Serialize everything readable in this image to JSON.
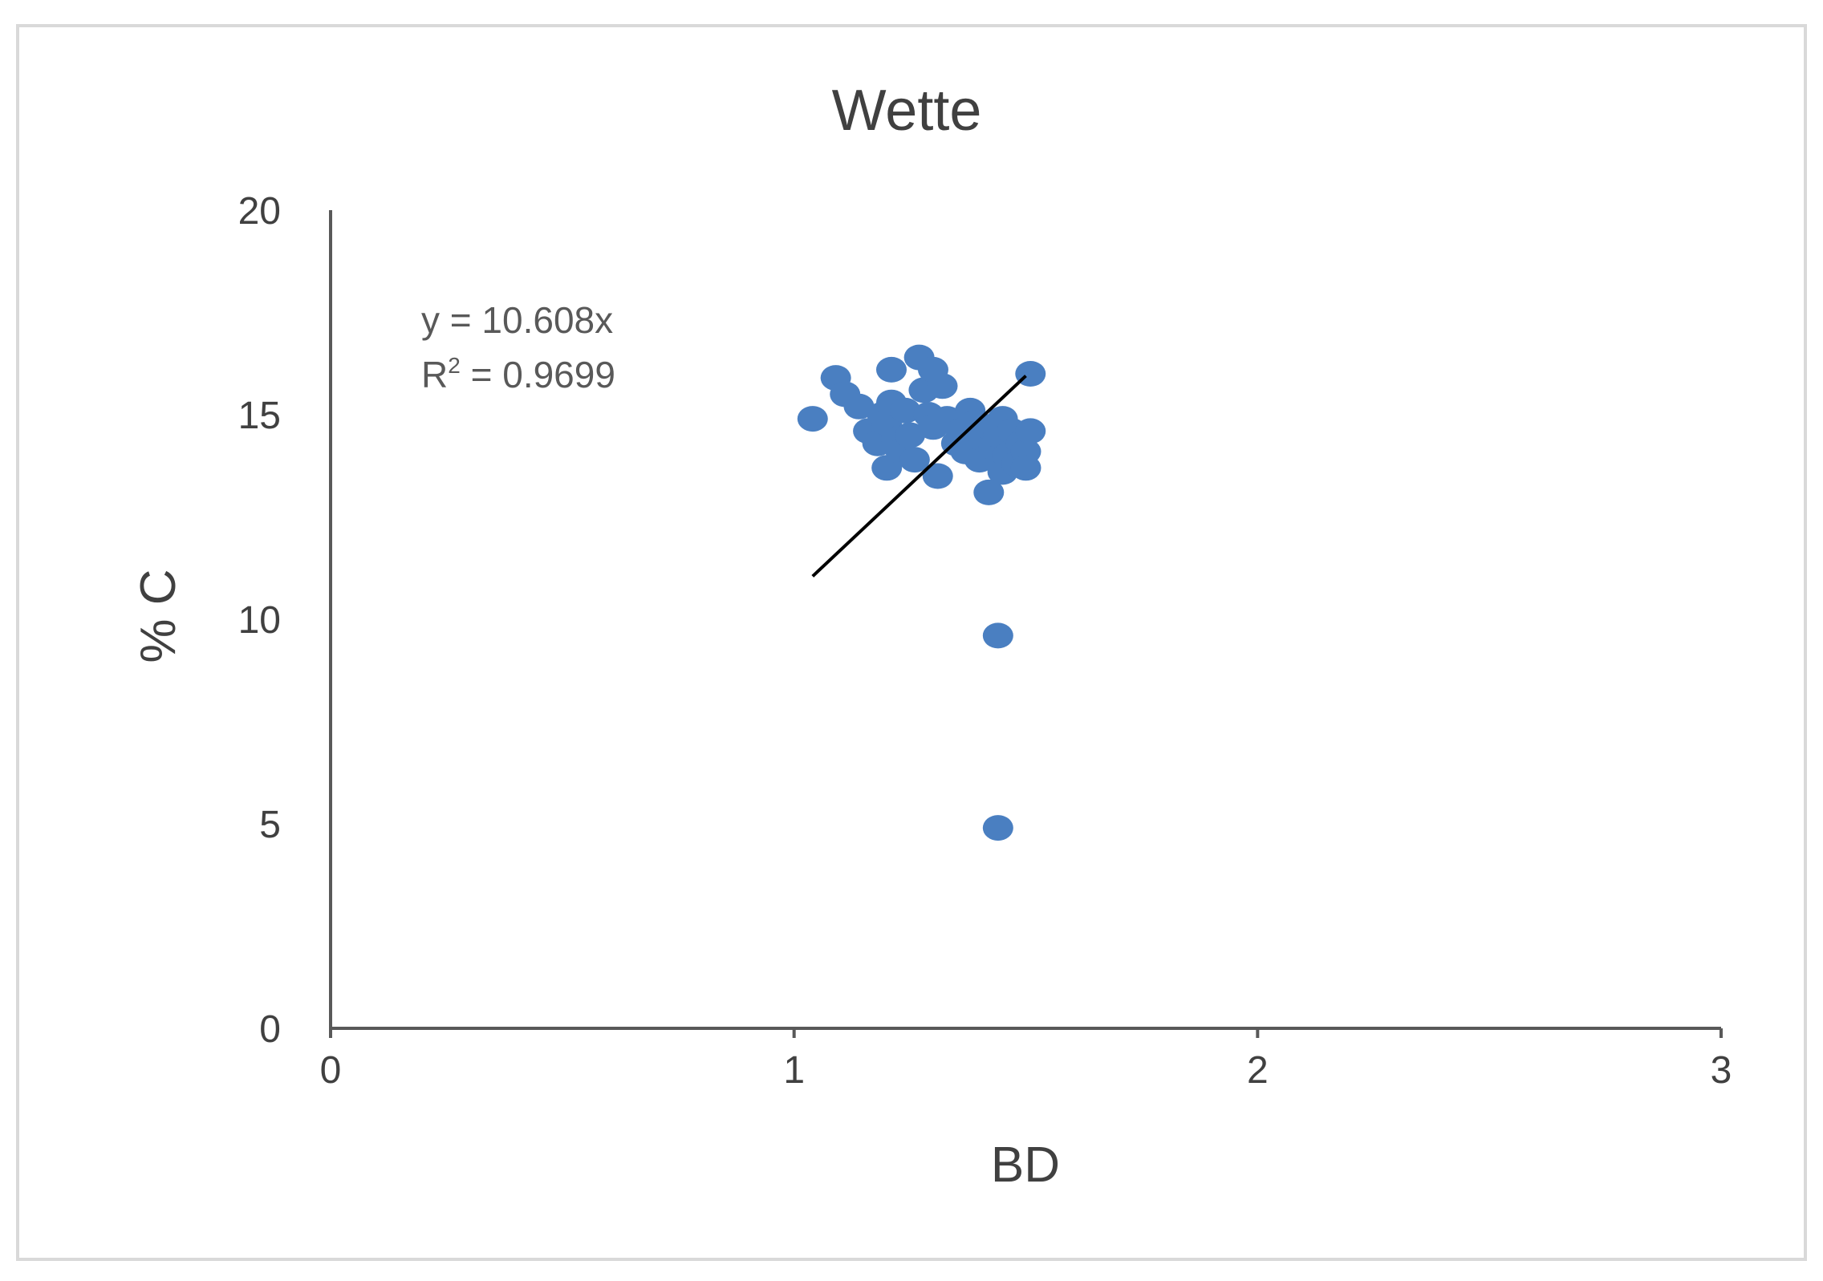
{
  "chart_data": {
    "type": "scatter",
    "title": "Wette",
    "xlabel": "BD",
    "ylabel": "% C",
    "xlim": [
      0,
      3
    ],
    "ylim": [
      0,
      20
    ],
    "xticks": [
      "0",
      "1",
      "2",
      "3"
    ],
    "yticks": [
      "0",
      "5",
      "10",
      "15",
      "20"
    ],
    "grid": false,
    "legend": "none",
    "colors": {
      "marker": "#4a7fc1",
      "trendline": "#000000",
      "axis": "#595959",
      "text": "#404040",
      "border": "#d9d9d9"
    },
    "series": [
      {
        "points": [
          [
            1.04,
            14.9
          ],
          [
            1.09,
            15.9
          ],
          [
            1.11,
            15.5
          ],
          [
            1.14,
            15.2
          ],
          [
            1.16,
            14.6
          ],
          [
            1.18,
            14.3
          ],
          [
            1.19,
            15.0
          ],
          [
            1.2,
            13.7
          ],
          [
            1.2,
            14.8
          ],
          [
            1.21,
            16.1
          ],
          [
            1.21,
            15.3
          ],
          [
            1.22,
            14.4
          ],
          [
            1.23,
            14.1
          ],
          [
            1.24,
            15.1
          ],
          [
            1.25,
            14.5
          ],
          [
            1.26,
            13.9
          ],
          [
            1.27,
            16.4
          ],
          [
            1.28,
            15.6
          ],
          [
            1.29,
            15.0
          ],
          [
            1.3,
            16.1
          ],
          [
            1.3,
            14.7
          ],
          [
            1.31,
            13.5
          ],
          [
            1.32,
            15.7
          ],
          [
            1.33,
            14.9
          ],
          [
            1.35,
            14.3
          ],
          [
            1.36,
            14.6
          ],
          [
            1.37,
            14.1
          ],
          [
            1.38,
            15.1
          ],
          [
            1.39,
            14.8
          ],
          [
            1.4,
            13.9
          ],
          [
            1.41,
            14.4
          ],
          [
            1.42,
            14.7
          ],
          [
            1.43,
            14.2
          ],
          [
            1.44,
            14.5
          ],
          [
            1.45,
            14.9
          ],
          [
            1.45,
            13.6
          ],
          [
            1.46,
            14.0
          ],
          [
            1.47,
            14.6
          ],
          [
            1.48,
            13.8
          ],
          [
            1.49,
            14.3
          ],
          [
            1.5,
            14.1
          ],
          [
            1.5,
            13.7
          ],
          [
            1.51,
            14.6
          ],
          [
            1.51,
            16.0
          ],
          [
            1.42,
            13.1
          ],
          [
            1.44,
            9.6
          ],
          [
            1.44,
            4.9
          ]
        ]
      }
    ],
    "trendline": {
      "equation": "y = 10.608x",
      "r2_prefix": "R",
      "r2_sup": "2",
      "r2_value": " = 0.9699",
      "slope": 10.608,
      "x_range": [
        1.04,
        1.5
      ]
    }
  }
}
